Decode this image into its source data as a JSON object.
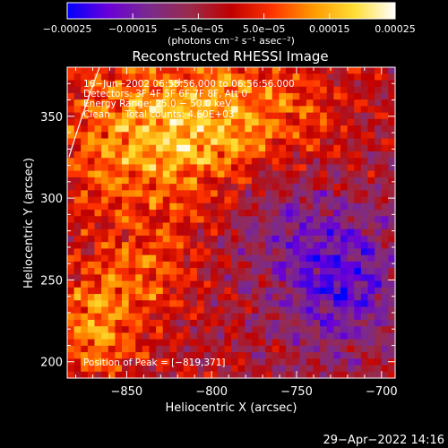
{
  "chart_data": {
    "type": "heatmap",
    "title": "Reconstructed RHESSI Image",
    "xlabel": "Heliocentric X (arcsec)",
    "ylabel": "Heliocentric Y (arcsec)",
    "xlim": [
      -885,
      -692
    ],
    "ylim": [
      190,
      380
    ],
    "x_ticks": [
      -850,
      -800,
      -750,
      -700
    ],
    "x_tick_labels": [
      "−850",
      "−800",
      "−750",
      "−700"
    ],
    "y_ticks": [
      200,
      250,
      300,
      350
    ],
    "y_tick_labels": [
      "200",
      "250",
      "300",
      "350"
    ],
    "colorbar": {
      "range": [
        -0.00025,
        0.00025
      ],
      "ticks": [
        -0.00025,
        -0.00015,
        -5e-05,
        5e-05,
        0.00015,
        0.00025
      ],
      "tick_labels": [
        "−0.00025",
        "−0.00015",
        "−5.0e−05",
        "5.0e−05",
        "0.00015",
        "0.00025"
      ],
      "label": "(photons cm⁻² s⁻¹ asec⁻²)",
      "colormap": [
        "#0000ff",
        "#6a00d8",
        "#7b2a8c",
        "#9a2a4a",
        "#c00000",
        "#ff3300",
        "#ff9900",
        "#ffdd33",
        "#ffffff"
      ]
    },
    "annotations": [
      "16−Jun−2002 06:55:56.000 to 06:56:56.000",
      "Detectors: 3F 4F 5F 6F 7F 8F, Att 0",
      "Energy Range: 25.0 − 50.0 keV",
      "Clean     Total counts: 4.60E+03"
    ],
    "peak_label": "Position of Peak = [−819,371]",
    "peak_position": [
      -819,
      371
    ],
    "limb_visible": true,
    "grid": false
  },
  "footer": {
    "timestamp": "29−Apr−2022 14:16"
  }
}
